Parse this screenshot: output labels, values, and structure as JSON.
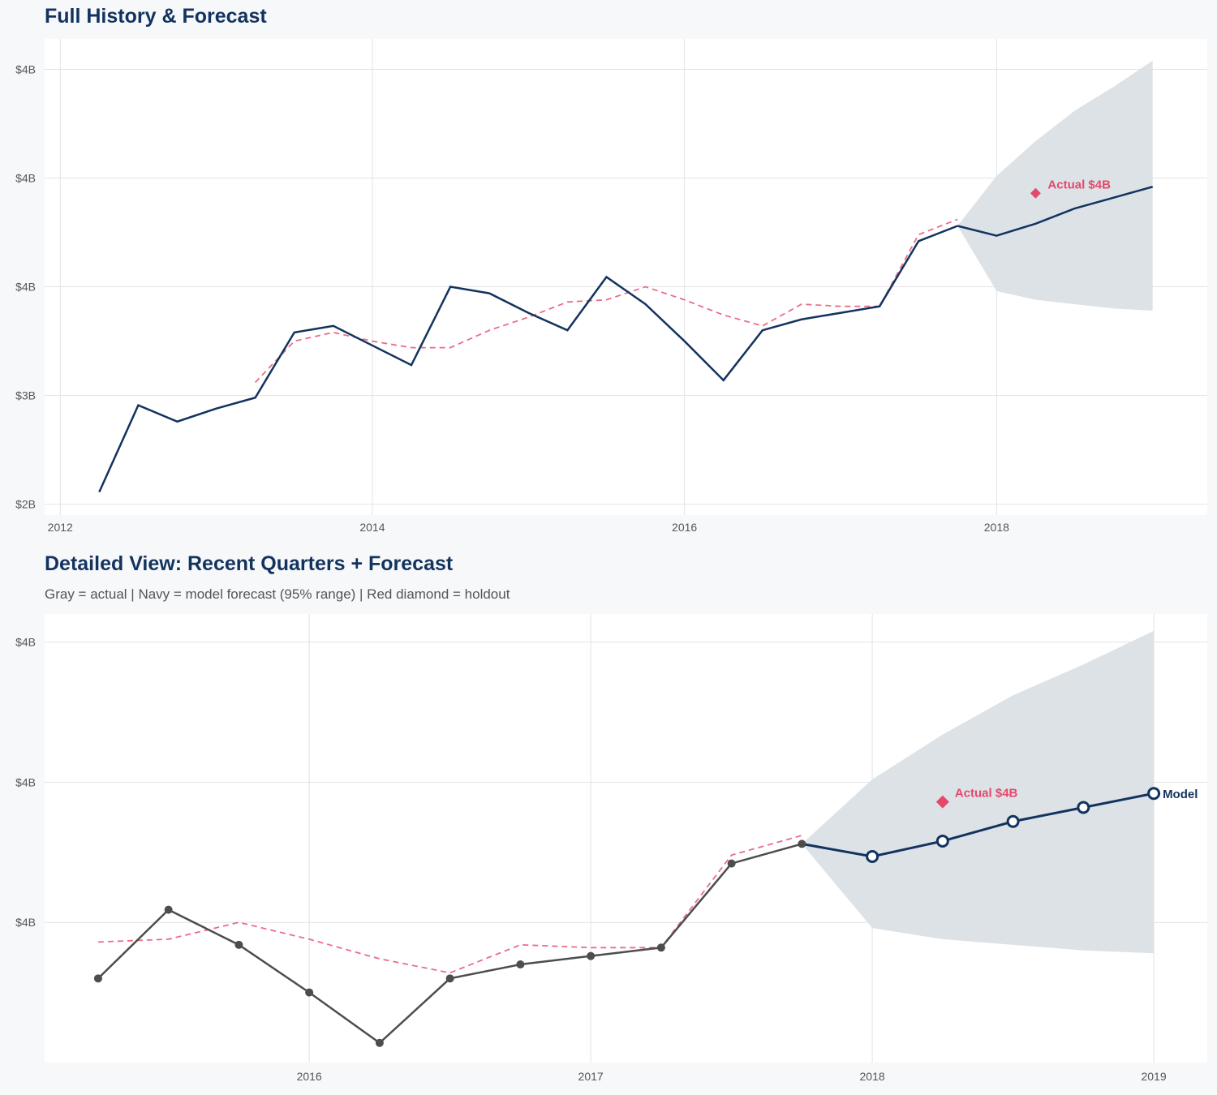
{
  "colors": {
    "navy": "#13335f",
    "red": "#e5486a",
    "gray": "#4d4d4d",
    "band": "#dbe0e6",
    "grid": "#e3e3e3"
  },
  "chart_data": [
    {
      "type": "line",
      "title": "Full History & Forecast",
      "xlim": [
        2011.9,
        2019.35
      ],
      "ylim": [
        2.45,
        4.64
      ],
      "x_ticks": [
        2012,
        2014,
        2016,
        2018
      ],
      "x_tick_labels": [
        "2012",
        "2014",
        "2016",
        "2018"
      ],
      "y_ticks": [
        2.5,
        3.0,
        3.5,
        4.0,
        4.5
      ],
      "y_tick_labels": [
        "$2B",
        "$3B",
        "$4B",
        "$4B",
        "$4B"
      ],
      "grid": true,
      "actual": {
        "x": [
          2012.25,
          2012.5,
          2012.75,
          2013.0,
          2013.25,
          2013.5,
          2013.75,
          2014.0,
          2014.25,
          2014.5,
          2014.75,
          2015.0,
          2015.25,
          2015.5,
          2015.75,
          2016.0,
          2016.25,
          2016.5,
          2016.75,
          2017.0,
          2017.25,
          2017.5,
          2017.75
        ],
        "y": [
          2.556,
          2.955,
          2.88,
          2.94,
          2.99,
          3.29,
          3.32,
          3.23,
          3.14,
          3.5,
          3.47,
          3.38,
          3.3,
          3.545,
          3.42,
          3.25,
          3.07,
          3.3,
          3.35,
          3.38,
          3.41,
          3.71,
          3.78
        ]
      },
      "fitted": {
        "x": [
          2013.25,
          2013.5,
          2013.75,
          2014.0,
          2014.25,
          2014.5,
          2014.75,
          2015.0,
          2015.25,
          2015.5,
          2015.75,
          2016.0,
          2016.25,
          2016.5,
          2016.75,
          2017.0,
          2017.25,
          2017.5,
          2017.75
        ],
        "y": [
          3.06,
          3.25,
          3.29,
          3.25,
          3.22,
          3.22,
          3.3,
          3.36,
          3.43,
          3.44,
          3.5,
          3.44,
          3.37,
          3.32,
          3.42,
          3.41,
          3.41,
          3.74,
          3.81
        ]
      },
      "forecast": {
        "x": [
          2017.75,
          2018.0,
          2018.25,
          2018.5,
          2018.75,
          2019.0
        ],
        "y": [
          3.78,
          3.735,
          3.79,
          3.86,
          3.91,
          3.96
        ],
        "lower": [
          3.78,
          3.48,
          3.44,
          3.42,
          3.4,
          3.39
        ],
        "upper": [
          3.78,
          4.01,
          4.17,
          4.31,
          4.42,
          4.54
        ]
      },
      "holdout": {
        "x": 2018.25,
        "y": 3.93,
        "label": "Actual $4B"
      }
    },
    {
      "type": "line",
      "title": "Detailed View: Recent Quarters + Forecast",
      "subtitle": "Gray = actual  |  Navy = model forecast (95% range)  |  Red diamond = holdout",
      "xlim": [
        2015.06,
        2019.19
      ],
      "ylim": [
        3.0,
        4.6
      ],
      "x_ticks": [
        2016,
        2017,
        2018,
        2019
      ],
      "x_tick_labels": [
        "2016",
        "2017",
        "2018",
        "2019"
      ],
      "y_ticks": [
        3.5,
        4.0,
        4.5
      ],
      "y_tick_labels": [
        "$4B",
        "$4B",
        "$4B"
      ],
      "grid": true,
      "actual": {
        "x": [
          2015.25,
          2015.5,
          2015.75,
          2016.0,
          2016.25,
          2016.5,
          2016.75,
          2017.0,
          2017.25,
          2017.5,
          2017.75
        ],
        "y": [
          3.3,
          3.545,
          3.42,
          3.25,
          3.07,
          3.3,
          3.35,
          3.38,
          3.41,
          3.71,
          3.78
        ]
      },
      "fitted": {
        "x": [
          2015.25,
          2015.5,
          2015.75,
          2016.0,
          2016.25,
          2016.5,
          2016.75,
          2017.0,
          2017.25,
          2017.5,
          2017.75
        ],
        "y": [
          3.43,
          3.44,
          3.5,
          3.44,
          3.37,
          3.32,
          3.42,
          3.41,
          3.41,
          3.74,
          3.81
        ]
      },
      "forecast": {
        "x": [
          2017.75,
          2018.0,
          2018.25,
          2018.5,
          2018.75,
          2019.0
        ],
        "y": [
          3.78,
          3.735,
          3.79,
          3.86,
          3.91,
          3.96
        ],
        "lower": [
          3.78,
          3.48,
          3.44,
          3.42,
          3.4,
          3.39
        ],
        "upper": [
          3.78,
          4.01,
          4.17,
          4.31,
          4.42,
          4.54
        ],
        "label": "Model"
      },
      "holdout": {
        "x": 2018.25,
        "y": 3.93,
        "label": "Actual $4B"
      }
    }
  ]
}
